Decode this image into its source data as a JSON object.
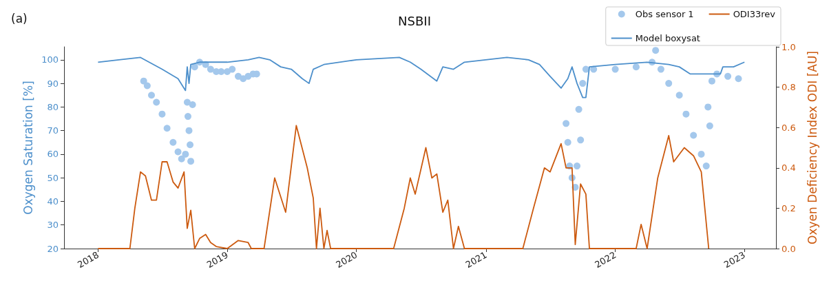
{
  "chart_data": {
    "type": "line",
    "title": "NSBII",
    "annotations": [
      "(a)"
    ],
    "ylabel": "Oxygen Saturation [%]",
    "y2label": "Oxyen Deficiency Index ODI [AU]",
    "xlim": [
      "2017-09-27",
      "2023-03-31"
    ],
    "xticks": [
      "2018",
      "2019",
      "2020",
      "2021",
      "2022",
      "2023"
    ],
    "ylim": [
      20,
      105.5
    ],
    "yticks": [
      20,
      30,
      40,
      50,
      60,
      70,
      80,
      90,
      100
    ],
    "y2lim": [
      0,
      1
    ],
    "y2ticks": [
      {
        "value": 0,
        "label": "0.0"
      },
      {
        "value": 0.2,
        "label": "0.2"
      },
      {
        "value": 0.4,
        "label": "0.4"
      },
      {
        "value": 0.6,
        "label": "0.6"
      },
      {
        "value": 0.8,
        "label": "0.8"
      },
      {
        "value": 1,
        "label": "1.0"
      }
    ],
    "grid": false,
    "legend": "top right",
    "series": [
      {
        "name": "Obs sensor 1",
        "type": "scatter",
        "marker": "circle",
        "color": "#a4c8ec",
        "x": [
          "2018-05-10",
          "2018-05-20",
          "2018-06-01",
          "2018-06-15",
          "2018-07-01",
          "2018-07-15",
          "2018-08-01",
          "2018-08-15",
          "2018-08-25",
          "2018-09-05",
          "2018-09-10",
          "2018-09-12",
          "2018-09-15",
          "2018-09-18",
          "2018-09-20",
          "2018-09-25",
          "2018-10-01",
          "2018-10-15",
          "2018-11-01",
          "2018-11-15",
          "2018-12-01",
          "2018-12-15",
          "2019-01-01",
          "2019-01-15",
          "2019-02-01",
          "2019-02-15",
          "2019-03-01",
          "2019-03-15",
          "2019-03-25",
          "2021-08-15",
          "2021-08-20",
          "2021-08-25",
          "2021-09-01",
          "2021-09-10",
          "2021-09-15",
          "2021-09-20",
          "2021-09-25",
          "2021-10-01",
          "2021-10-10",
          "2021-11-01",
          "2022-01-01",
          "2022-03-01",
          "2022-04-15",
          "2022-04-25",
          "2022-05-10",
          "2022-06-01",
          "2022-07-01",
          "2022-07-20",
          "2022-08-10",
          "2022-09-01",
          "2022-09-15",
          "2022-09-20",
          "2022-09-25",
          "2022-10-01",
          "2022-10-15",
          "2022-11-15",
          "2022-12-15"
        ],
        "values": [
          91,
          89,
          85,
          82,
          77,
          71,
          65,
          61,
          58,
          60,
          82,
          76,
          70,
          64,
          57,
          81,
          97,
          99,
          98,
          96,
          95,
          95,
          95,
          96,
          93,
          92,
          93,
          94,
          94,
          73,
          65,
          55,
          50,
          46,
          55,
          79,
          66,
          90,
          96,
          96,
          96,
          97,
          99,
          104,
          96,
          90,
          85,
          77,
          68,
          60,
          55,
          80,
          72,
          91,
          94,
          93,
          92
        ]
      },
      {
        "name": "Model boxysat",
        "color": "#4c8fcb",
        "x": [
          "2018-01-01",
          "2018-03-01",
          "2018-05-01",
          "2018-07-01",
          "2018-08-15",
          "2018-09-05",
          "2018-09-10",
          "2018-09-15",
          "2018-09-20",
          "2018-10-15",
          "2019-01-01",
          "2019-03-01",
          "2019-04-01",
          "2019-05-01",
          "2019-06-01",
          "2019-07-01",
          "2019-08-01",
          "2019-08-20",
          "2019-09-01",
          "2019-10-01",
          "2020-01-01",
          "2020-05-01",
          "2020-06-01",
          "2020-07-01",
          "2020-08-15",
          "2020-09-01",
          "2020-10-01",
          "2020-11-01",
          "2021-03-01",
          "2021-05-01",
          "2021-06-01",
          "2021-07-01",
          "2021-08-01",
          "2021-08-20",
          "2021-09-01",
          "2021-09-15",
          "2021-10-01",
          "2021-10-10",
          "2021-10-20",
          "2022-01-01",
          "2022-04-01",
          "2022-06-01",
          "2022-07-01",
          "2022-08-01",
          "2022-10-25",
          "2022-11-01",
          "2022-12-01",
          "2023-01-01"
        ],
        "values": [
          99,
          100,
          101,
          96,
          92,
          87,
          97,
          90,
          98,
          99,
          99,
          100,
          101,
          100,
          97,
          96,
          92,
          90,
          96,
          98,
          100,
          101,
          99,
          96,
          91,
          97,
          96,
          99,
          101,
          100,
          98,
          93,
          88,
          92,
          97,
          90,
          84,
          84,
          97,
          98,
          99,
          98,
          97,
          94,
          94,
          97,
          97,
          99
        ]
      },
      {
        "name": "ODI33rev",
        "type": "line",
        "axis": "y2",
        "color": "#cc5a0f",
        "x": [
          "2018-01-01",
          "2018-04-01",
          "2018-04-15",
          "2018-05-01",
          "2018-05-15",
          "2018-06-01",
          "2018-06-15",
          "2018-07-01",
          "2018-07-15",
          "2018-08-01",
          "2018-08-15",
          "2018-09-01",
          "2018-09-10",
          "2018-09-20",
          "2018-10-01",
          "2018-10-15",
          "2018-11-01",
          "2018-11-15",
          "2018-12-01",
          "2019-01-01",
          "2019-02-01",
          "2019-03-01",
          "2019-03-10",
          "2019-04-15",
          "2019-05-15",
          "2019-06-15",
          "2019-07-15",
          "2019-08-15",
          "2019-09-01",
          "2019-09-10",
          "2019-09-20",
          "2019-10-01",
          "2019-10-10",
          "2019-10-20",
          "2020-04-15",
          "2020-05-15",
          "2020-06-01",
          "2020-06-15",
          "2020-07-15",
          "2020-08-01",
          "2020-08-15",
          "2020-09-01",
          "2020-09-15",
          "2020-10-01",
          "2020-10-15",
          "2020-11-01",
          "2021-04-15",
          "2021-05-15",
          "2021-06-15",
          "2021-07-01",
          "2021-08-01",
          "2021-08-15",
          "2021-09-01",
          "2021-09-10",
          "2021-09-25",
          "2021-10-10",
          "2021-10-20",
          "2022-03-01",
          "2022-03-15",
          "2022-04-01",
          "2022-05-01",
          "2022-06-01",
          "2022-06-15",
          "2022-07-15",
          "2022-08-10",
          "2022-09-01",
          "2022-09-22"
        ],
        "values": [
          0,
          0,
          0.2,
          0.38,
          0.36,
          0.24,
          0.24,
          0.43,
          0.43,
          0.33,
          0.3,
          0.38,
          0.1,
          0.19,
          0,
          0.05,
          0.07,
          0.03,
          0.01,
          0,
          0.04,
          0.03,
          0,
          0,
          0.35,
          0.18,
          0.61,
          0.4,
          0.25,
          0,
          0.2,
          0,
          0.09,
          0,
          0,
          0.2,
          0.35,
          0.27,
          0.5,
          0.35,
          0.37,
          0.18,
          0.24,
          0,
          0.11,
          0,
          0,
          0.2,
          0.4,
          0.38,
          0.52,
          0.4,
          0.4,
          0.02,
          0.32,
          0.27,
          0,
          0,
          0.12,
          0,
          0.35,
          0.56,
          0.43,
          0.5,
          0.46,
          0.38,
          0
        ]
      }
    ]
  }
}
